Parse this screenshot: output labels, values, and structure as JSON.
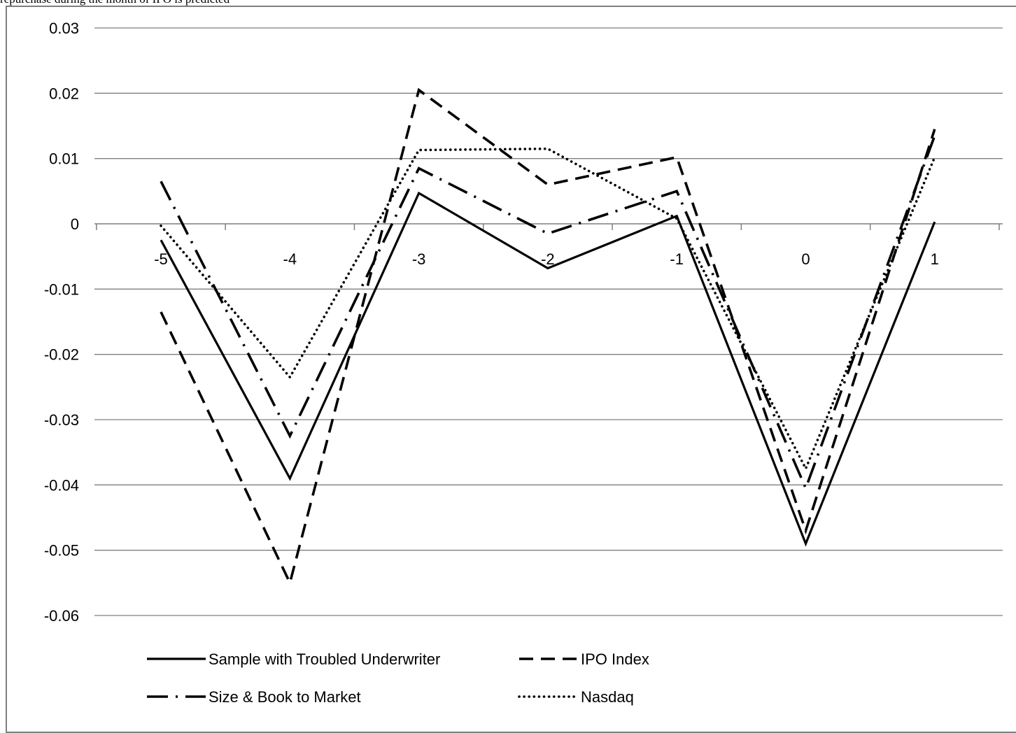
{
  "caption": "repurchase during the month of IPO is predicted",
  "chart_data": {
    "type": "line",
    "title": "",
    "xlabel": "",
    "ylabel": "",
    "categories": [
      "-5",
      "-4",
      "-3",
      "-2",
      "-1",
      "0",
      "1"
    ],
    "ylim": [
      -0.06,
      0.03
    ],
    "yticks": [
      0.03,
      0.02,
      0.01,
      0,
      -0.01,
      -0.02,
      -0.03,
      -0.04,
      -0.05,
      -0.06
    ],
    "ytick_labels": [
      "0.03",
      "0.02",
      "0.01",
      "0",
      "-0.01",
      "-0.02",
      "-0.03",
      "-0.04",
      "-0.05",
      "-0.06"
    ],
    "grid": "horizontal",
    "legend_position": "bottom",
    "series": [
      {
        "name": "Sample with Troubled Underwriter",
        "style": "solid",
        "values": [
          -0.0025,
          -0.039,
          0.0047,
          -0.0068,
          0.0012,
          -0.049,
          0.0003
        ]
      },
      {
        "name": "IPO Index",
        "style": "dashed",
        "values": [
          -0.0135,
          -0.055,
          0.0205,
          0.006,
          0.0102,
          -0.047,
          0.0145
        ]
      },
      {
        "name": "Size & Book to Market",
        "style": "dash-dot",
        "values": [
          0.0065,
          -0.0325,
          0.0085,
          -0.0015,
          0.005,
          -0.0405,
          0.0135
        ]
      },
      {
        "name": "Nasdaq",
        "style": "dotted",
        "values": [
          -0.0003,
          -0.0235,
          0.0113,
          0.0115,
          0.0008,
          -0.0375,
          0.0102
        ]
      }
    ]
  },
  "colors": {
    "line": "#000000",
    "grid": "#7f7f7f",
    "frame": "#7f7f7f"
  }
}
